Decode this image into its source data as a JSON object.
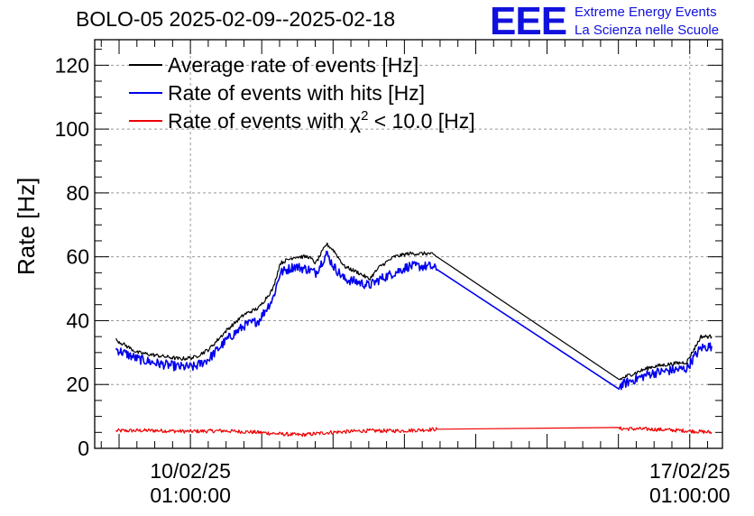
{
  "header": {
    "title": "BOLO-05 2025-02-09--2025-02-18",
    "logo_mark": "EEE",
    "logo_line1": "Extreme Energy Events",
    "logo_line2": "La Scienza nelle Scuole"
  },
  "colors": {
    "average": "#000000",
    "hits": "#0000ee",
    "chi2": "#ee0000",
    "logo": "#1111dd",
    "grid": "#999999"
  },
  "chart_data": {
    "type": "line",
    "title": "BOLO-05 2025-02-09--2025-02-18",
    "xlabel": "",
    "ylabel": "Rate [Hz]",
    "x_unit": "days since 2025-02-09 00:00",
    "xlim": [
      -0.3,
      8.5
    ],
    "ylim": [
      0,
      128
    ],
    "yticks": [
      0,
      20,
      40,
      60,
      80,
      100,
      120
    ],
    "ytick_labels": [
      "0",
      "20",
      "40",
      "60",
      "80",
      "100",
      "120"
    ],
    "xticks": [
      1.042,
      8.042
    ],
    "xtick_labels": [
      [
        "10/02/25",
        "01:00:00"
      ],
      [
        "17/02/25",
        "01:00:00"
      ]
    ],
    "grid": true,
    "legend_position": "top-left",
    "series": [
      {
        "name": "Average rate of events [Hz]",
        "legend_label": "Average rate of events [Hz]",
        "color": "#000000",
        "noise": 0.6,
        "x": [
          0.0,
          0.3,
          0.6,
          0.9,
          1.1,
          1.3,
          1.55,
          1.8,
          2.0,
          2.2,
          2.3,
          2.5,
          2.7,
          2.8,
          2.95,
          3.05,
          3.2,
          3.4,
          3.55,
          3.7,
          3.9,
          4.1,
          4.3,
          4.4,
          4.5,
          7.05,
          7.2,
          7.5,
          7.8,
          8.0,
          8.1,
          8.2,
          8.35
        ],
        "y": [
          34,
          30,
          29,
          28,
          28.5,
          31,
          37,
          42,
          44,
          50,
          58,
          60,
          60,
          58,
          64,
          62,
          57,
          55,
          53,
          57,
          60,
          61,
          61,
          61,
          60,
          21.5,
          23,
          25.5,
          26.5,
          27,
          31,
          35,
          35
        ]
      },
      {
        "name": "Rate of events with hits [Hz]",
        "legend_label": "Rate of events with hits [Hz]",
        "color": "#0000ee",
        "noise": 1.5,
        "x": [
          0.0,
          0.3,
          0.6,
          0.9,
          1.1,
          1.3,
          1.55,
          1.8,
          2.0,
          2.2,
          2.3,
          2.5,
          2.7,
          2.8,
          2.95,
          3.05,
          3.2,
          3.4,
          3.55,
          3.7,
          3.9,
          4.1,
          4.3,
          4.4,
          4.5,
          7.05,
          7.2,
          7.5,
          7.8,
          8.0,
          8.1,
          8.2,
          8.35
        ],
        "y": [
          31,
          28,
          26.5,
          25.5,
          25.5,
          28,
          34,
          38.5,
          40,
          47,
          55,
          57,
          56,
          55,
          61,
          57,
          53,
          52,
          51,
          53,
          55,
          57,
          57,
          57,
          56,
          19.5,
          21,
          23.5,
          24.5,
          25,
          28.5,
          31.5,
          32
        ]
      },
      {
        "name": "Rate of events with chi2 < 10.0 [Hz]",
        "legend_label": "Rate of events with",
        "legend_chi": "χ",
        "legend_exp": "2",
        "legend_rest": "< 10.0 [Hz]",
        "color": "#ee0000",
        "noise": 0.6,
        "x": [
          0.0,
          0.5,
          1.0,
          1.5,
          2.0,
          2.3,
          2.6,
          3.0,
          3.5,
          4.0,
          4.5,
          7.05,
          7.5,
          8.0,
          8.35
        ],
        "y": [
          5.5,
          5.6,
          5.3,
          5.5,
          5.0,
          4.5,
          4.2,
          5.0,
          5.5,
          5.5,
          6.0,
          6.2,
          6.0,
          5.5,
          5.0
        ]
      }
    ]
  }
}
